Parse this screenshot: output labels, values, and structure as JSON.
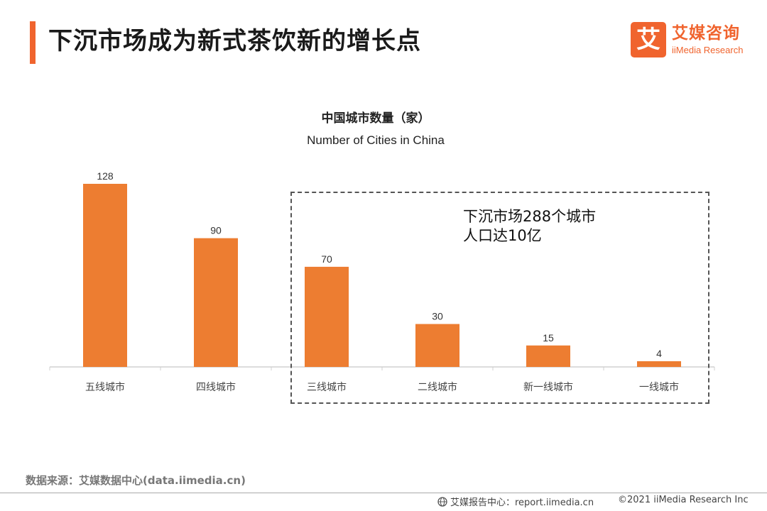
{
  "header": {
    "title": "下沉市场成为新式茶饮新的增长点",
    "accent_color": "#F0642E"
  },
  "logo": {
    "mark": "艾",
    "name_cn": "艾媒咨询",
    "name_en": "iiMedia Research"
  },
  "chart_data": {
    "type": "bar",
    "title": "中国城市数量（家）",
    "subtitle": "Number of Cities in China",
    "categories": [
      "五线城市",
      "四线城市",
      "三线城市",
      "二线城市",
      "新一线城市",
      "一线城市"
    ],
    "values": [
      128,
      90,
      70,
      30,
      15,
      4
    ],
    "data_labels": [
      "128",
      "90",
      "70",
      "30",
      "15",
      "4"
    ],
    "bar_color": "#ED7D31",
    "ylim": [
      0,
      128
    ],
    "grid": false,
    "annotation": {
      "lines": [
        "下沉市场288个城市",
        "人口达10亿"
      ],
      "highlighted_categories": [
        "三线城市",
        "二线城市",
        "新一线城市",
        "一线城市"
      ]
    }
  },
  "footer": {
    "source": "数据来源：艾媒数据中心(data.iimedia.cn)",
    "report": "艾媒报告中心：report.iimedia.cn",
    "copyright": "©2021  iiMedia Research  Inc"
  }
}
